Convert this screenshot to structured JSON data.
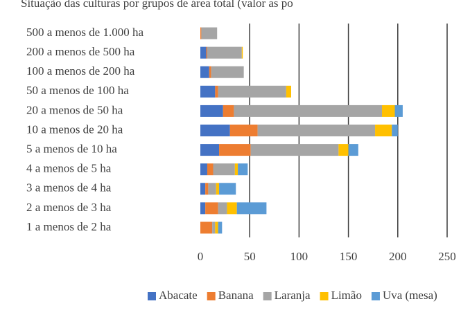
{
  "chart_data": {
    "type": "stacked_barh",
    "title": "Situação das culturas por grupos de área total (valor as po",
    "categories": [
      "500 a menos de 1.000 ha",
      "200 a menos de 500 ha",
      "100 a menos de 200 ha",
      "50 a menos de 100 ha",
      "20 a menos de 50 ha",
      "10 a menos de 20 ha",
      "5 a menos de 10 ha",
      "4 a menos de 5 ha",
      "3 a menos de 4 ha",
      "2 a menos de 3 ha",
      "1 a menos de 2 ha"
    ],
    "series": [
      {
        "name": "Abacate",
        "color": "#4472c4",
        "values": [
          0,
          6,
          9,
          15,
          23,
          30,
          19,
          7,
          5,
          5,
          0
        ]
      },
      {
        "name": "Banana",
        "color": "#ed7d31",
        "values": [
          1,
          1,
          2,
          3,
          11,
          28,
          32,
          6,
          3,
          13,
          12
        ]
      },
      {
        "name": "Laranja",
        "color": "#a5a5a5",
        "values": [
          16,
          35,
          33,
          69,
          150,
          119,
          89,
          22,
          8,
          9,
          3
        ]
      },
      {
        "name": "Limão",
        "color": "#ffc000",
        "values": [
          0,
          1,
          0,
          5,
          13,
          17,
          10,
          3,
          3,
          10,
          3
        ]
      },
      {
        "name": "Uva (mesa)",
        "color": "#5b9bd5",
        "values": [
          0,
          0,
          0,
          0,
          8,
          6,
          10,
          10,
          17,
          30,
          4
        ]
      }
    ],
    "xlim": [
      0,
      250
    ],
    "xticks": [
      0,
      50,
      100,
      150,
      200,
      250
    ],
    "grid": true,
    "legend": "bottom"
  }
}
